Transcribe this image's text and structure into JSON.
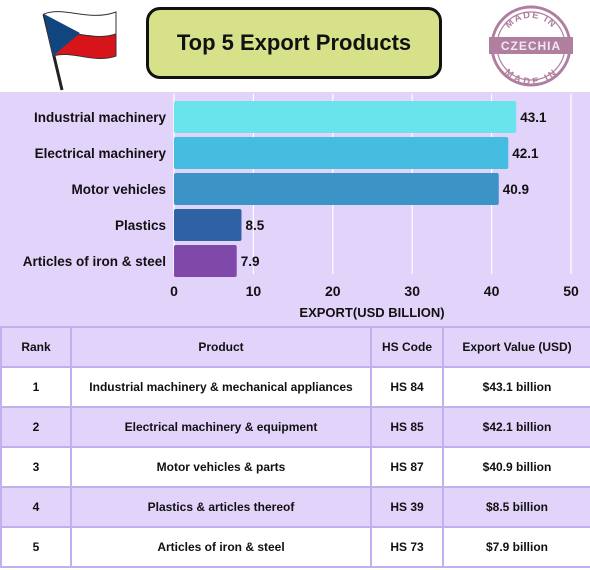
{
  "header": {
    "title": "Top 5 Export Products",
    "stamp_top": "MADE IN",
    "stamp_middle": "CZECHIA",
    "stamp_bottom": "MADE IN"
  },
  "chart_data": {
    "type": "bar",
    "orientation": "horizontal",
    "categories": [
      "Industrial machinery",
      "Electrical machinery",
      "Motor vehicles",
      "Plastics",
      "Articles of iron & steel"
    ],
    "values": [
      43.1,
      42.1,
      40.9,
      8.5,
      7.9
    ],
    "value_labels": [
      "43.1",
      "42.1",
      "40.9",
      "8.5",
      "7.9"
    ],
    "colors": [
      "#6ae4ec",
      "#45bde0",
      "#3b93c6",
      "#2e62a4",
      "#8048a8"
    ],
    "xlabel": "EXPORT(USD BILLION)",
    "xlim": [
      0,
      50
    ],
    "xticks": [
      0,
      10,
      20,
      30,
      40,
      50
    ],
    "grid": true
  },
  "table": {
    "headers": [
      "Rank",
      "Product",
      "HS Code",
      "Export Value (USD)"
    ],
    "rows": [
      [
        "1",
        "Industrial machinery & mechanical appliances",
        "HS 84",
        "$43.1 billion"
      ],
      [
        "2",
        "Electrical machinery & equipment",
        "HS 85",
        "$42.1 billion"
      ],
      [
        "3",
        "Motor vehicles & parts",
        "HS 87",
        "$40.9 billion"
      ],
      [
        "4",
        "Plastics & articles thereof",
        "HS 39",
        "$8.5 billion"
      ],
      [
        "5",
        "Articles of iron & steel",
        "HS 73",
        "$7.9 billion"
      ]
    ],
    "row_colors": [
      "#ffffff",
      "#e2d3fb"
    ]
  }
}
